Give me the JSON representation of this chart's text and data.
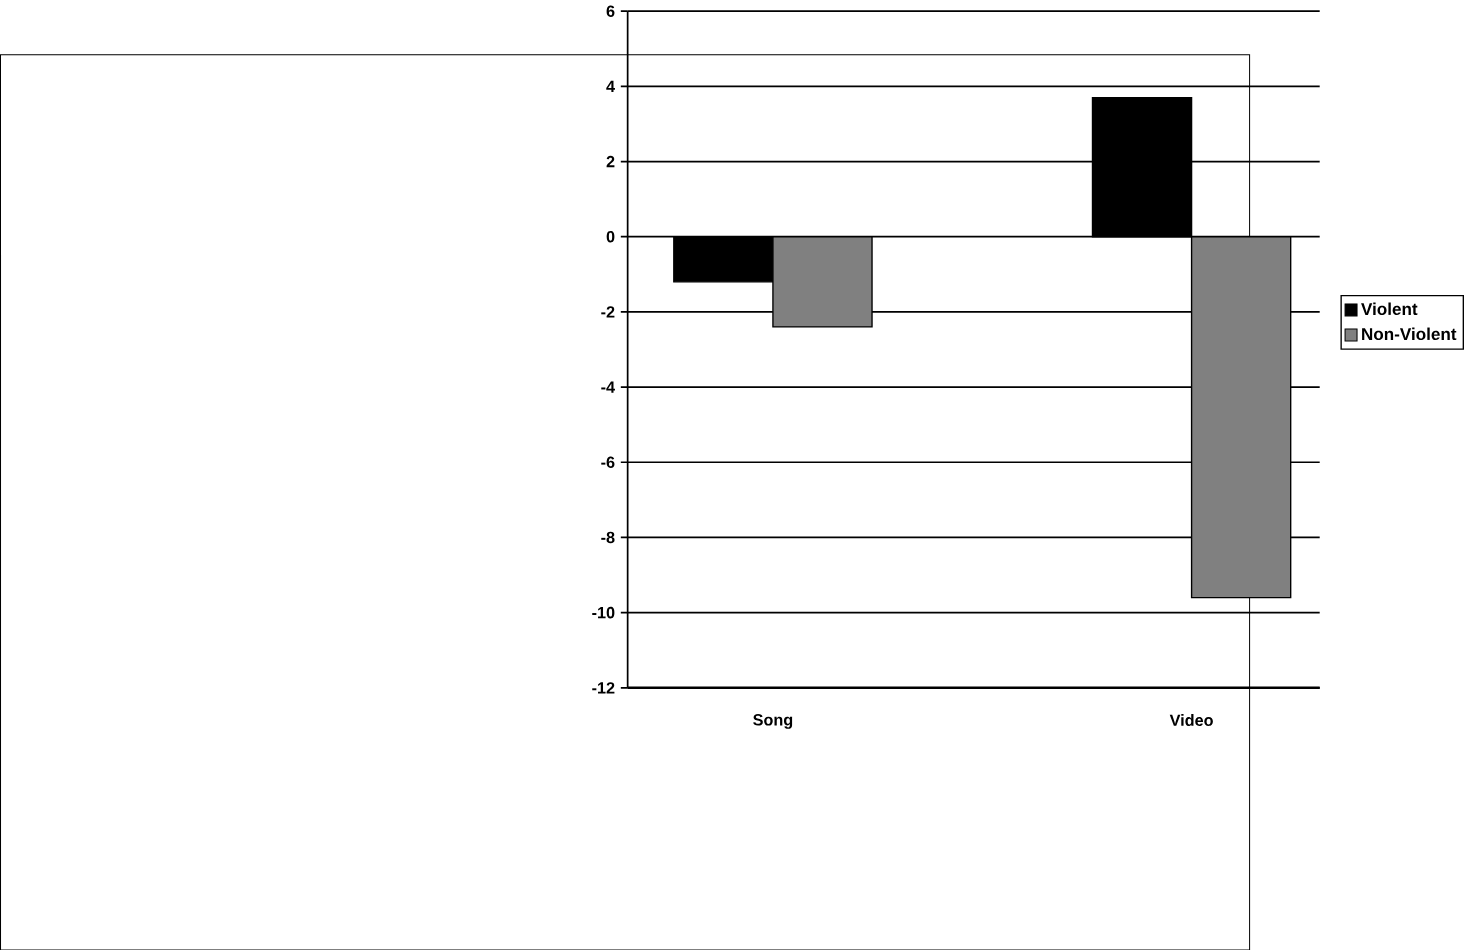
{
  "chart_data": {
    "type": "bar",
    "categories": [
      "Song",
      "Video"
    ],
    "series": [
      {
        "name": "Violent",
        "color": "#000000",
        "values": [
          -1.2,
          3.7
        ]
      },
      {
        "name": "Non-Violent",
        "color": "#808080",
        "values": [
          -2.4,
          -9.6
        ]
      }
    ],
    "ylim": [
      -12,
      6
    ],
    "yticks": [
      -12,
      -10,
      -8,
      -6,
      -4,
      -2,
      0,
      2,
      4,
      6
    ],
    "grid": "y",
    "legend": "right"
  }
}
